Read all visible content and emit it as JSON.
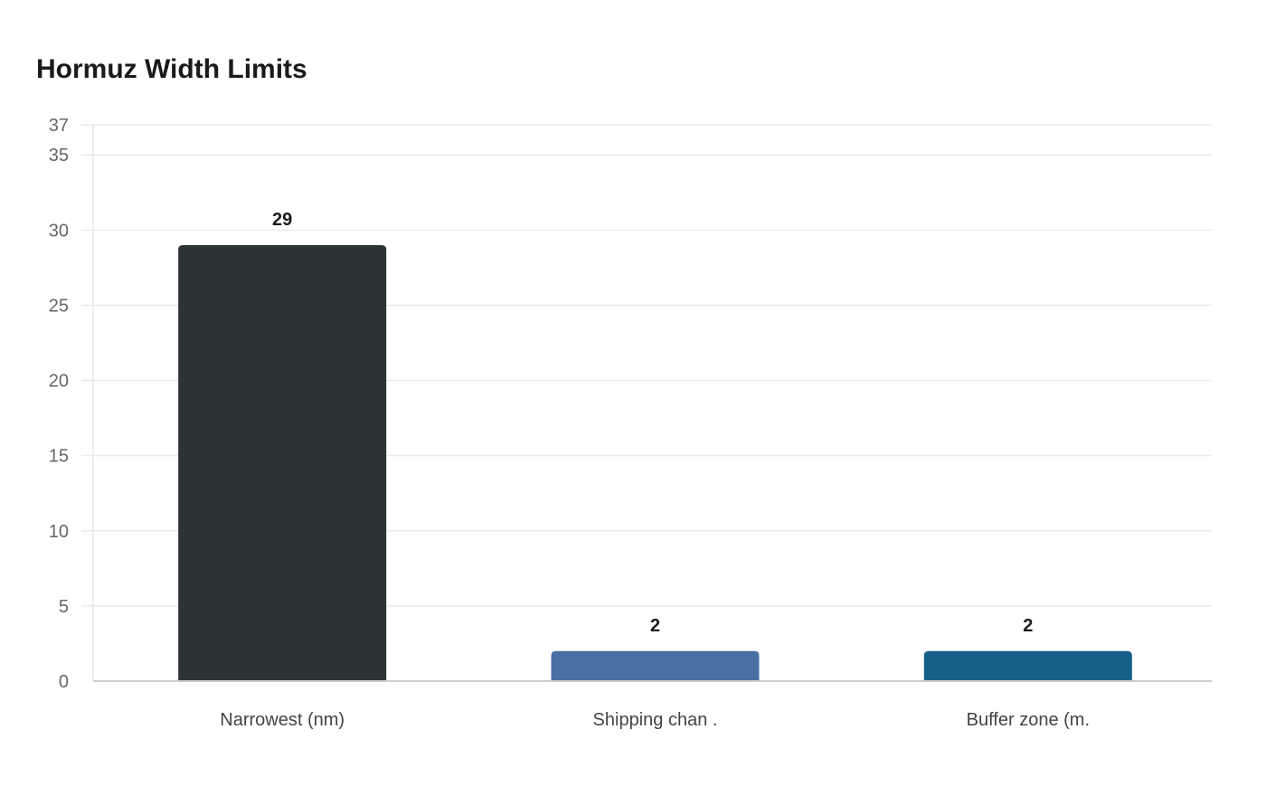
{
  "title": "Hormuz Width Limits",
  "chart_data": {
    "type": "bar",
    "title": "Hormuz Width Limits",
    "categories": [
      "Narrowest (nm)",
      "Shipping chan .",
      "Buffer zone (m."
    ],
    "values": [
      29,
      2,
      2
    ],
    "colors": [
      "#2d3436",
      "#4a6fa5",
      "#166088"
    ],
    "xlabel": "",
    "ylabel": "",
    "ylim": [
      0,
      37
    ],
    "yticks": [
      0,
      5,
      10,
      15,
      20,
      25,
      30,
      35,
      37
    ],
    "grid": true,
    "legend": false
  }
}
